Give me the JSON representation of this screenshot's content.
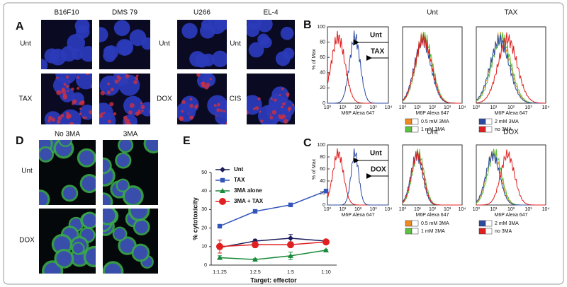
{
  "panels": {
    "A": {
      "label": "A",
      "columns": [
        "B16F10",
        "DMS 79",
        "U266",
        "EL-4"
      ],
      "row_labels": [
        "Unt",
        "TAX",
        "Unt",
        "DOX",
        "Unt",
        "CIS"
      ]
    },
    "B": {
      "label": "B",
      "titles": [
        "Unt",
        "TAX"
      ],
      "y_axis_label": "% of Max",
      "yticks": [
        0,
        20,
        40,
        60,
        80,
        100
      ],
      "x_axis_label": "M6P Alexa 647",
      "xticks": [
        "10⁰",
        "10¹",
        "10²",
        "10³",
        "10⁴"
      ],
      "annotations": [
        "Unt",
        "TAX"
      ],
      "legend": [
        "0.5 mM 3MA",
        "2 mM 3MA",
        "1 mM 3MA",
        "no 3MA"
      ]
    },
    "C": {
      "label": "C",
      "titles": [
        "Unt",
        "DOX"
      ],
      "y_axis_label": "% of Max",
      "yticks": [
        0,
        20,
        40,
        60,
        80,
        100
      ],
      "x_axis_label": "M6P Alexa 647",
      "xticks": [
        "10⁰",
        "10¹",
        "10²",
        "10³",
        "10⁴"
      ],
      "annotations": [
        "Unt",
        "DOX"
      ],
      "legend": [
        "0.5 mM 3MA",
        "2 mM 3MA",
        "1 mM 3MA",
        "no 3MA"
      ]
    },
    "D": {
      "label": "D",
      "columns": [
        "No 3MA",
        "3MA"
      ],
      "row_labels": [
        "Unt",
        "DOX"
      ]
    }
  },
  "chart_data": {
    "type": "line",
    "label": "E",
    "y_axis_label": "% cytotoxicity",
    "x_axis_label": "Target: effector",
    "categories": [
      "1:1.25",
      "1:2.5",
      "1:5",
      "1:10"
    ],
    "ylim": [
      0,
      50
    ],
    "yticks": [
      0,
      10,
      20,
      30,
      40,
      50
    ],
    "series": [
      {
        "name": "Unt",
        "color": "#1c1c5c",
        "marker": "diamond",
        "values": [
          9.5,
          13,
          14.5,
          13
        ],
        "errors": [
          1,
          1,
          2,
          0.5
        ]
      },
      {
        "name": "TAX",
        "color": "#3355bb",
        "marker": "square",
        "values": [
          21,
          29,
          32.5,
          40
        ],
        "errors": [
          0.5,
          0.5,
          0.5,
          0.5
        ]
      },
      {
        "name": "3MA alone",
        "color": "#1a8a3a",
        "marker": "triangle",
        "values": [
          4,
          3,
          5,
          8
        ],
        "errors": [
          1,
          0.5,
          2,
          0.5
        ]
      },
      {
        "name": "3MA + TAX",
        "color": "#e02020",
        "marker": "circle",
        "values": [
          10,
          11,
          11,
          12.5
        ],
        "errors": [
          3.5,
          1.5,
          1,
          1
        ]
      }
    ]
  }
}
